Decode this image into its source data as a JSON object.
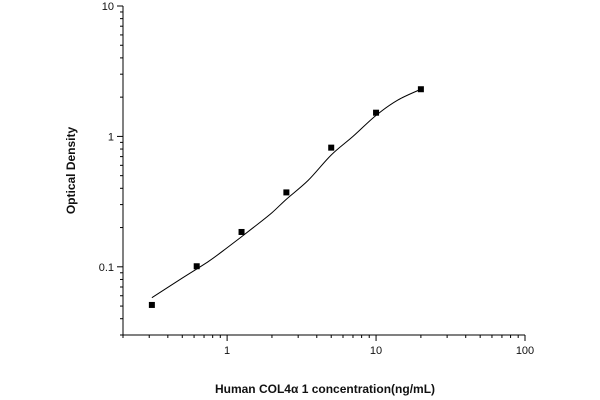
{
  "chart_data": {
    "type": "scatter",
    "title": "",
    "xlabel": "Human COL4α 1 concentration(ng/mL)",
    "ylabel": "Optical Density",
    "x_scale": "log",
    "y_scale": "log",
    "xlim": [
      0.2,
      100
    ],
    "ylim": [
      0.03,
      10
    ],
    "x_tick_labels": [
      {
        "value": 1,
        "label": "1"
      },
      {
        "value": 10,
        "label": "10"
      },
      {
        "value": 100,
        "label": "100"
      }
    ],
    "y_tick_labels": [
      {
        "value": 0.1,
        "label": "0.1"
      },
      {
        "value": 1,
        "label": "1"
      },
      {
        "value": 10,
        "label": "10"
      }
    ],
    "grid": false,
    "legend": "none",
    "series": [
      {
        "x": [
          0.3125,
          0.625,
          1.25,
          2.5,
          5,
          10,
          20
        ],
        "y": [
          0.051,
          0.101,
          0.185,
          0.372,
          0.82,
          1.52,
          2.3
        ]
      }
    ],
    "fit_curve": {
      "x": [
        0.3125,
        0.5,
        0.75,
        1,
        1.5,
        2,
        2.5,
        3.5,
        5,
        7,
        10,
        14,
        20
      ],
      "y": [
        0.058,
        0.082,
        0.11,
        0.14,
        0.2,
        0.26,
        0.33,
        0.46,
        0.72,
        1.0,
        1.45,
        1.9,
        2.3
      ]
    },
    "colors": {
      "axis": "#000000",
      "marker": "#000000",
      "curve": "#000000"
    }
  }
}
